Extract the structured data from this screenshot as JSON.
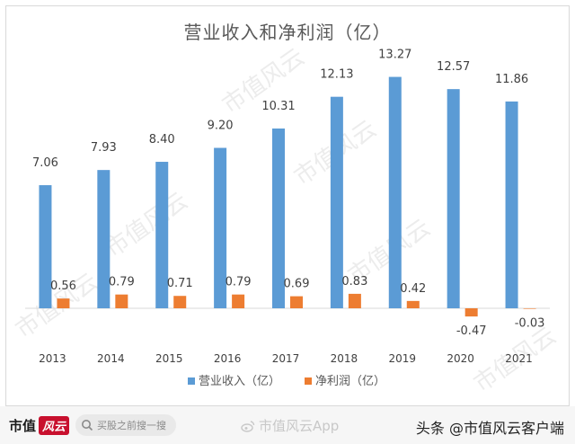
{
  "chart_data": {
    "type": "bar",
    "title": "营业收入和净利润（亿）",
    "categories": [
      "2013",
      "2014",
      "2015",
      "2016",
      "2017",
      "2018",
      "2019",
      "2020",
      "2021"
    ],
    "series": [
      {
        "name": "营业收入（亿）",
        "color": "#5b9bd5",
        "values": [
          7.06,
          7.93,
          8.4,
          9.2,
          10.31,
          12.13,
          13.27,
          12.57,
          11.86
        ],
        "labels": [
          "7.06",
          "7.93",
          "8.40",
          "9.20",
          "10.31",
          "12.13",
          "13.27",
          "12.57",
          "11.86"
        ]
      },
      {
        "name": "净利润（亿）",
        "color": "#ed7d31",
        "values": [
          0.56,
          0.79,
          0.71,
          0.79,
          0.69,
          0.83,
          0.42,
          -0.47,
          -0.03
        ],
        "labels": [
          "0.56",
          "0.79",
          "0.71",
          "0.79",
          "0.69",
          "0.83",
          "0.42",
          "-0.47",
          "-0.03"
        ]
      }
    ],
    "ylim": [
      -1,
      14
    ],
    "grid": false,
    "legend": "bottom"
  },
  "watermark": "市值风云",
  "footer": {
    "logo_text": "市值",
    "logo_mark": "风云",
    "search_placeholder": "买股之前搜一搜",
    "app_label": "市值风云App",
    "byline": "头条 @市值风云客户端"
  }
}
